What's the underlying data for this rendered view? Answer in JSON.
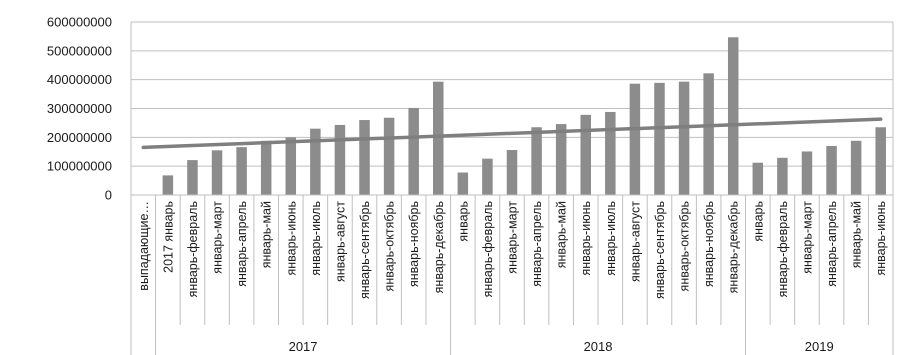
{
  "chart_data": {
    "type": "bar",
    "title": "",
    "xlabel": "",
    "ylabel": "",
    "ylim": [
      0,
      600000000
    ],
    "yticks": [
      0,
      100000000,
      200000000,
      300000000,
      400000000,
      500000000,
      600000000
    ],
    "grid": true,
    "legend": "none",
    "bar_color": "#8c8c8c",
    "trend_color": "#7f7f7f",
    "axis_color": "#bfbfbf",
    "categories": [
      "выпадающие…",
      "2017 январь",
      "январь-февраль",
      "январь-март",
      "январь-апрель",
      "январь-май",
      "январь-июнь",
      "январь-июль",
      "январь-август",
      "январь-сентябрь",
      "январь-октябрь",
      "январь-ноябрь",
      "январь-декабрь",
      "январь",
      "январь-февраль",
      "январь-март",
      "январь-апрель",
      "январь-май",
      "январь-июнь",
      "январь-июль",
      "январь-август",
      "январь-сентябрь",
      "январь-октябрь",
      "январь-ноябрь",
      "январь-декабрь",
      "январь",
      "январь-февраль",
      "январь-март",
      "январь-апрель",
      "январь-май",
      "январь-июнь"
    ],
    "values": [
      0,
      68000000,
      121000000,
      155000000,
      166000000,
      188000000,
      200000000,
      230000000,
      243000000,
      260000000,
      268000000,
      302000000,
      393000000,
      78000000,
      126000000,
      156000000,
      235000000,
      246000000,
      278000000,
      288000000,
      386000000,
      389000000,
      393000000,
      422000000,
      547000000,
      112000000,
      129000000,
      151000000,
      170000000,
      188000000,
      235000000
    ],
    "groups": [
      {
        "label": "2017",
        "start": 1,
        "end": 12
      },
      {
        "label": "2018",
        "start": 13,
        "end": 24
      },
      {
        "label": "2019",
        "start": 25,
        "end": 30
      }
    ],
    "trendline": {
      "type": "linear",
      "start_value": 165000000,
      "end_value": 263000000
    }
  }
}
